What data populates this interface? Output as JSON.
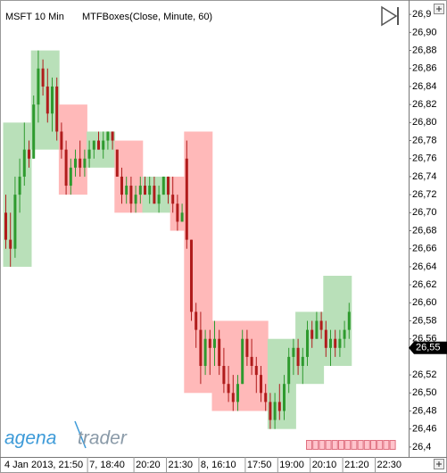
{
  "chart_data": {
    "type": "candlestick",
    "title": "MSFT 10 Min",
    "indicator": "MTFBoxes(Close, Minute, 60)",
    "ylim": [
      26.429,
      26.936
    ],
    "yticks": [
      {
        "value": 26.92,
        "label": "26,9"
      },
      {
        "value": 26.9,
        "label": "26,90"
      },
      {
        "value": 26.88,
        "label": "26,88"
      },
      {
        "value": 26.86,
        "label": "26,86"
      },
      {
        "value": 26.84,
        "label": "26,84"
      },
      {
        "value": 26.82,
        "label": "26,82"
      },
      {
        "value": 26.8,
        "label": "26,80"
      },
      {
        "value": 26.78,
        "label": "26,78"
      },
      {
        "value": 26.76,
        "label": "26,76"
      },
      {
        "value": 26.74,
        "label": "26,74"
      },
      {
        "value": 26.72,
        "label": "26,72"
      },
      {
        "value": 26.7,
        "label": "26,70"
      },
      {
        "value": 26.68,
        "label": "26,68"
      },
      {
        "value": 26.66,
        "label": "26,66"
      },
      {
        "value": 26.64,
        "label": "26,64"
      },
      {
        "value": 26.62,
        "label": "26,62"
      },
      {
        "value": 26.6,
        "label": "26,60"
      },
      {
        "value": 26.58,
        "label": "26,58"
      },
      {
        "value": 26.56,
        "label": "26,56"
      },
      {
        "value": 26.52,
        "label": "26,52"
      },
      {
        "value": 26.5,
        "label": "26,50"
      },
      {
        "value": 26.48,
        "label": "26,48"
      },
      {
        "value": 26.46,
        "label": "26,46"
      },
      {
        "value": 26.44,
        "label": "26,4"
      }
    ],
    "grid": false,
    "up_color": "#2e9a2e",
    "down_color": "#b01c1c",
    "last_price": {
      "value": 26.55,
      "label": "26,55"
    },
    "xticks_after": [
      "22:30"
    ],
    "boxes": [
      {
        "high": 26.8,
        "low": 26.64,
        "color": "#b9e0b9",
        "candles": [
          {
            "open": 26.7,
            "high": 26.72,
            "low": 26.66,
            "close": 26.67,
            "label": "4 Jan 2013, 21:50"
          },
          {
            "open": 26.67,
            "high": 26.7,
            "low": 26.64,
            "close": 26.66
          },
          {
            "open": 26.66,
            "high": 26.74,
            "low": 26.65,
            "close": 26.72
          },
          {
            "open": 26.72,
            "high": 26.76,
            "low": 26.7,
            "close": 26.74
          },
          {
            "open": 26.74,
            "high": 26.8,
            "low": 26.73,
            "close": 26.77
          },
          {
            "open": 26.77,
            "high": 26.78,
            "low": 26.75,
            "close": 26.76
          }
        ]
      },
      {
        "high": 26.88,
        "low": 26.77,
        "color": "#b9e0b9",
        "candles": [
          {
            "open": 26.76,
            "high": 26.83,
            "low": 26.76,
            "close": 26.82
          },
          {
            "open": 26.82,
            "high": 26.88,
            "low": 26.8,
            "close": 26.86
          },
          {
            "open": 26.86,
            "high": 26.87,
            "low": 26.83,
            "close": 26.84
          },
          {
            "open": 26.84,
            "high": 26.86,
            "low": 26.8,
            "close": 26.81
          },
          {
            "open": 26.81,
            "high": 26.85,
            "low": 26.79,
            "close": 26.84
          },
          {
            "open": 26.84,
            "high": 26.85,
            "low": 26.78,
            "close": 26.79
          }
        ]
      },
      {
        "high": 26.82,
        "low": 26.72,
        "color": "#ffb9b9",
        "candles": [
          {
            "open": 26.79,
            "high": 26.8,
            "low": 26.76,
            "close": 26.77
          },
          {
            "open": 26.77,
            "high": 26.78,
            "low": 26.72,
            "close": 26.73
          },
          {
            "open": 26.73,
            "high": 26.76,
            "low": 26.72,
            "close": 26.75
          },
          {
            "open": 26.75,
            "high": 26.77,
            "low": 26.74,
            "close": 26.76
          },
          {
            "open": 26.76,
            "high": 26.78,
            "low": 26.74,
            "close": 26.75
          },
          {
            "open": 26.75,
            "high": 26.77,
            "low": 26.74,
            "close": 26.76
          }
        ]
      },
      {
        "high": 26.79,
        "low": 26.75,
        "color": "#b9e0b9",
        "candles": [
          {
            "open": 26.76,
            "high": 26.78,
            "low": 26.75,
            "close": 26.77,
            "label": "7, 18:40"
          },
          {
            "open": 26.77,
            "high": 26.78,
            "low": 26.76,
            "close": 26.78
          },
          {
            "open": 26.78,
            "high": 26.79,
            "low": 26.77,
            "close": 26.77
          },
          {
            "open": 26.77,
            "high": 26.79,
            "low": 26.76,
            "close": 26.78
          },
          {
            "open": 26.78,
            "high": 26.79,
            "low": 26.77,
            "close": 26.79
          },
          {
            "open": 26.79,
            "high": 26.79,
            "low": 26.77,
            "close": 26.78
          }
        ]
      },
      {
        "high": 26.78,
        "low": 26.7,
        "color": "#ffb9b9",
        "candles": [
          {
            "open": 26.77,
            "high": 26.77,
            "low": 26.74,
            "close": 26.74
          },
          {
            "open": 26.74,
            "high": 26.75,
            "low": 26.71,
            "close": 26.72
          },
          {
            "open": 26.72,
            "high": 26.74,
            "low": 26.71,
            "close": 26.73
          },
          {
            "open": 26.73,
            "high": 26.74,
            "low": 26.7,
            "close": 26.71
          },
          {
            "open": 26.71,
            "high": 26.73,
            "low": 26.7,
            "close": 26.72,
            "label": "20:20"
          },
          {
            "open": 26.72,
            "high": 26.74,
            "low": 26.71,
            "close": 26.73
          }
        ]
      },
      {
        "high": 26.74,
        "low": 26.7,
        "color": "#b9e0b9",
        "candles": [
          {
            "open": 26.73,
            "high": 26.74,
            "low": 26.72,
            "close": 26.72
          },
          {
            "open": 26.72,
            "high": 26.74,
            "low": 26.71,
            "close": 26.73
          },
          {
            "open": 26.73,
            "high": 26.74,
            "low": 26.71,
            "close": 26.71
          },
          {
            "open": 26.71,
            "high": 26.73,
            "low": 26.7,
            "close": 26.72
          },
          {
            "open": 26.72,
            "high": 26.74,
            "low": 26.72,
            "close": 26.74
          },
          {
            "open": 26.74,
            "high": 26.74,
            "low": 26.71,
            "close": 26.72,
            "label": "21:30"
          }
        ]
      },
      {
        "high": 26.74,
        "low": 26.68,
        "color": "#ffb9b9",
        "candles": [
          {
            "open": 26.72,
            "high": 26.74,
            "low": 26.7,
            "close": 26.71
          },
          {
            "open": 26.71,
            "high": 26.72,
            "low": 26.68,
            "close": 26.69
          },
          {
            "open": 26.69,
            "high": 26.71,
            "low": 26.69,
            "close": 26.7
          }
        ]
      },
      {
        "high": 26.79,
        "low": 26.5,
        "color": "#ffb9b9",
        "candles": [
          {
            "open": 26.76,
            "high": 26.78,
            "low": 26.66,
            "close": 26.67
          },
          {
            "open": 26.67,
            "high": 26.67,
            "low": 26.58,
            "close": 26.59
          },
          {
            "open": 26.59,
            "high": 26.6,
            "low": 26.55,
            "close": 26.57
          },
          {
            "open": 26.57,
            "high": 26.59,
            "low": 26.51,
            "close": 26.53,
            "label": "8, 16:10"
          },
          {
            "open": 26.53,
            "high": 26.57,
            "low": 26.52,
            "close": 26.56
          },
          {
            "open": 26.56,
            "high": 26.57,
            "low": 26.52,
            "close": 26.55
          }
        ]
      },
      {
        "high": 26.58,
        "low": 26.48,
        "color": "#ffb9b9",
        "candles": [
          {
            "open": 26.55,
            "high": 26.58,
            "low": 26.53,
            "close": 26.56
          },
          {
            "open": 26.56,
            "high": 26.57,
            "low": 26.52,
            "close": 26.53
          },
          {
            "open": 26.53,
            "high": 26.55,
            "low": 26.5,
            "close": 26.51
          },
          {
            "open": 26.51,
            "high": 26.53,
            "low": 26.49,
            "close": 26.5
          },
          {
            "open": 26.5,
            "high": 26.52,
            "low": 26.48,
            "close": 26.49
          },
          {
            "open": 26.49,
            "high": 26.52,
            "low": 26.48,
            "close": 26.51
          }
        ]
      },
      {
        "high": 26.58,
        "low": 26.48,
        "color": "#ffb9b9",
        "candles": [
          {
            "open": 26.51,
            "high": 26.57,
            "low": 26.51,
            "close": 26.56
          },
          {
            "open": 26.56,
            "high": 26.57,
            "low": 26.53,
            "close": 26.54,
            "label": "17:50"
          },
          {
            "open": 26.54,
            "high": 26.56,
            "low": 26.52,
            "close": 26.53
          },
          {
            "open": 26.53,
            "high": 26.54,
            "low": 26.5,
            "close": 26.52
          },
          {
            "open": 26.52,
            "high": 26.53,
            "low": 26.49,
            "close": 26.5
          },
          {
            "open": 26.5,
            "high": 26.51,
            "low": 26.48,
            "close": 26.49
          }
        ]
      },
      {
        "high": 26.56,
        "low": 26.46,
        "color": "#b9e0b9",
        "candles": [
          {
            "open": 26.49,
            "high": 26.5,
            "low": 26.46,
            "close": 26.47
          },
          {
            "open": 26.47,
            "high": 26.5,
            "low": 26.46,
            "close": 26.49
          },
          {
            "open": 26.49,
            "high": 26.51,
            "low": 26.47,
            "close": 26.48,
            "label": "19:00"
          },
          {
            "open": 26.48,
            "high": 26.52,
            "low": 26.47,
            "close": 26.51
          },
          {
            "open": 26.51,
            "high": 26.55,
            "low": 26.5,
            "close": 26.54
          },
          {
            "open": 26.54,
            "high": 26.56,
            "low": 26.52,
            "close": 26.55
          }
        ]
      },
      {
        "high": 26.59,
        "low": 26.51,
        "color": "#b9e0b9",
        "candles": [
          {
            "open": 26.55,
            "high": 26.56,
            "low": 26.52,
            "close": 26.53
          },
          {
            "open": 26.53,
            "high": 26.55,
            "low": 26.51,
            "close": 26.54
          },
          {
            "open": 26.54,
            "high": 26.58,
            "low": 26.53,
            "close": 26.57
          },
          {
            "open": 26.57,
            "high": 26.58,
            "low": 26.55,
            "close": 26.56,
            "label": "20:10"
          },
          {
            "open": 26.56,
            "high": 26.59,
            "low": 26.56,
            "close": 26.58
          },
          {
            "open": 26.58,
            "high": 26.59,
            "low": 26.56,
            "close": 26.57
          }
        ]
      },
      {
        "high": 26.63,
        "low": 26.53,
        "color": "#b9e0b9",
        "candles": [
          {
            "open": 26.57,
            "high": 26.58,
            "low": 26.54,
            "close": 26.55
          },
          {
            "open": 26.55,
            "high": 26.57,
            "low": 26.53,
            "close": 26.56
          },
          {
            "open": 26.56,
            "high": 26.57,
            "low": 26.54,
            "close": 26.55
          },
          {
            "open": 26.55,
            "high": 26.57,
            "low": 26.54,
            "close": 26.56
          },
          {
            "open": 26.56,
            "high": 26.58,
            "low": 26.55,
            "close": 26.57,
            "label": "21:20"
          },
          {
            "open": 26.57,
            "high": 26.6,
            "low": 26.56,
            "close": 26.59
          }
        ]
      }
    ]
  },
  "logo": {
    "brand": "agena",
    "product": "trader"
  }
}
